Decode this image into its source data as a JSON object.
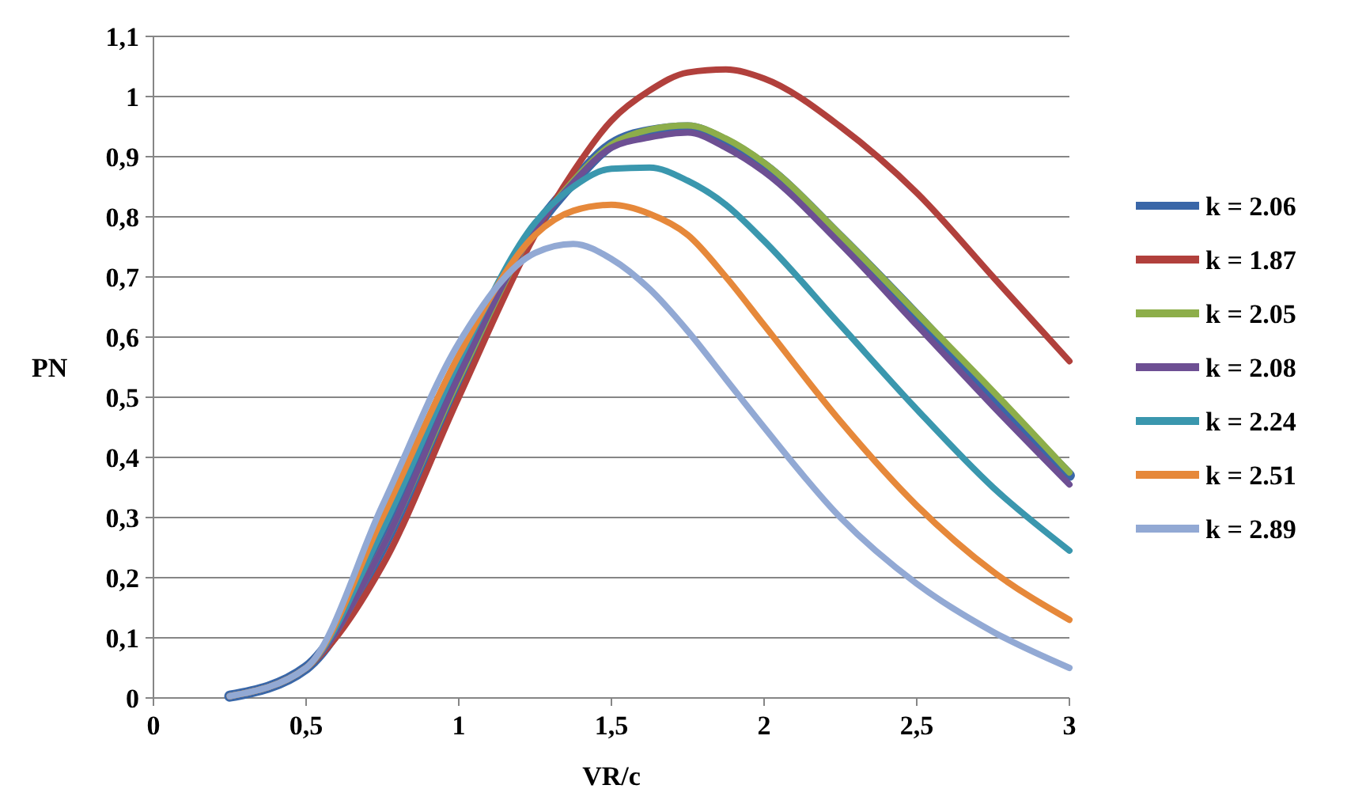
{
  "chart_data": {
    "type": "line",
    "xlabel": "VR/c",
    "ylabel": "PN",
    "grid": "y",
    "legend": "right",
    "marker": "none",
    "line_style": "solid",
    "x": [
      0.25,
      0.5,
      0.75,
      1,
      1.25,
      1.375,
      1.5,
      1.625,
      1.75,
      1.875,
      2,
      2.25,
      2.5,
      2.75,
      3
    ],
    "xlim": [
      0,
      3
    ],
    "xticks": [
      0,
      {
        "value": 0.5,
        "label": "0,5"
      },
      1,
      {
        "value": 1.5,
        "label": "1,5"
      },
      2,
      {
        "value": 2.5,
        "label": "2,5"
      },
      3
    ],
    "ylim": [
      0,
      1.1
    ],
    "yticks": [
      0,
      {
        "value": 0.1,
        "label": "0,1"
      },
      {
        "value": 0.2,
        "label": "0,2"
      },
      {
        "value": 0.3,
        "label": "0,3"
      },
      {
        "value": 0.4,
        "label": "0,4"
      },
      {
        "value": 0.5,
        "label": "0,5"
      },
      {
        "value": 0.6,
        "label": "0,6"
      },
      {
        "value": 0.7,
        "label": "0,7"
      },
      {
        "value": 0.8,
        "label": "0,8"
      },
      {
        "value": 0.9,
        "label": "0,9"
      },
      1,
      {
        "value": 1.1,
        "label": "1,1"
      }
    ],
    "series": [
      {
        "name": "k = 2.06",
        "color": "#3a67a8",
        "values": [
          0.003,
          0.05,
          0.25,
          0.53,
          0.78,
          0.858,
          0.92,
          0.942,
          0.948,
          0.925,
          0.885,
          0.765,
          0.635,
          0.5,
          0.37
        ]
      },
      {
        "name": "k = 1.87",
        "color": "#b1403c",
        "values": [
          0.003,
          0.05,
          0.22,
          0.5,
          0.77,
          0.875,
          0.96,
          1.01,
          1.04,
          1.045,
          1.03,
          0.95,
          0.84,
          0.7,
          0.56
        ]
      },
      {
        "name": "k = 2.05",
        "color": "#8dae4a",
        "values": [
          0.003,
          0.05,
          0.25,
          0.53,
          0.78,
          0.86,
          0.92,
          0.945,
          0.952,
          0.93,
          0.89,
          0.77,
          0.64,
          0.51,
          0.375
        ]
      },
      {
        "name": "k = 2.08",
        "color": "#6d4f93",
        "values": [
          0.003,
          0.05,
          0.25,
          0.535,
          0.78,
          0.857,
          0.915,
          0.932,
          0.94,
          0.915,
          0.875,
          0.755,
          0.62,
          0.485,
          0.355
        ]
      },
      {
        "name": "k = 2.24",
        "color": "#3a97ae",
        "values": [
          0.003,
          0.05,
          0.28,
          0.56,
          0.79,
          0.85,
          0.88,
          0.882,
          0.86,
          0.82,
          0.76,
          0.62,
          0.48,
          0.35,
          0.245
        ]
      },
      {
        "name": "k = 2.51",
        "color": "#e6883a",
        "values": [
          0.003,
          0.05,
          0.3,
          0.57,
          0.77,
          0.81,
          0.82,
          0.805,
          0.77,
          0.7,
          0.62,
          0.46,
          0.32,
          0.21,
          0.13
        ]
      },
      {
        "name": "k = 2.89",
        "color": "#92a9d4",
        "values": [
          0.003,
          0.05,
          0.32,
          0.59,
          0.74,
          0.755,
          0.73,
          0.68,
          0.61,
          0.53,
          0.45,
          0.3,
          0.19,
          0.11,
          0.05
        ]
      }
    ]
  }
}
